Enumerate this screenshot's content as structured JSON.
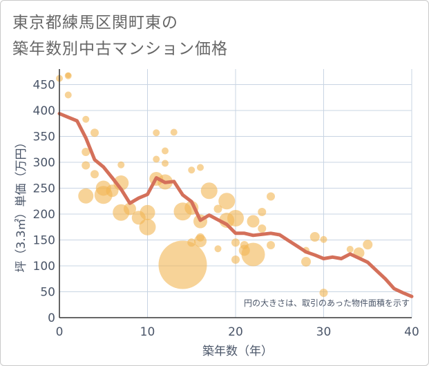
{
  "title_line1": "東京都練馬区関町東の",
  "title_line2": "築年数別中古マンション価格",
  "note": "円の大きさは、取引のあった物件面積を示す",
  "colors": {
    "line": "#d4705a",
    "bubble": "#f2b554",
    "grid": "#c8d4e3",
    "text": "#4a5568"
  },
  "chart_data": {
    "type": "scatter",
    "xlabel": "築年数（年）",
    "ylabel": "坪（3.3㎡）単価（万円）",
    "xlim": [
      0,
      40
    ],
    "ylim": [
      0,
      480
    ],
    "xticks": [
      0,
      10,
      20,
      30,
      40
    ],
    "yticks": [
      0,
      50,
      100,
      150,
      200,
      250,
      300,
      350,
      400,
      450
    ],
    "grid": true,
    "line_series": {
      "x": [
        0,
        1,
        2,
        3,
        4,
        5,
        6,
        7,
        8,
        9,
        10,
        11,
        12,
        13,
        14,
        15,
        16,
        17,
        18,
        19,
        20,
        21,
        22,
        23,
        24,
        25,
        26,
        27,
        28,
        29,
        30,
        31,
        32,
        33,
        34,
        35,
        36,
        37,
        38,
        39,
        40
      ],
      "y": [
        394,
        387,
        380,
        347,
        305,
        291,
        270,
        248,
        221,
        231,
        238,
        270,
        261,
        263,
        237,
        224,
        188,
        198,
        189,
        180,
        163,
        163,
        159,
        161,
        163,
        160,
        149,
        138,
        127,
        121,
        114,
        117,
        114,
        123,
        115,
        107,
        91,
        75,
        56,
        48,
        41
      ]
    },
    "bubbles": [
      {
        "x": 0,
        "y": 462,
        "s": 5
      },
      {
        "x": 1,
        "y": 467,
        "s": 5
      },
      {
        "x": 1,
        "y": 468,
        "s": 4
      },
      {
        "x": 1,
        "y": 430,
        "s": 5
      },
      {
        "x": 3,
        "y": 383,
        "s": 5
      },
      {
        "x": 4,
        "y": 357,
        "s": 6
      },
      {
        "x": 3,
        "y": 320,
        "s": 6
      },
      {
        "x": 3,
        "y": 294,
        "s": 6
      },
      {
        "x": 4,
        "y": 277,
        "s": 6
      },
      {
        "x": 3,
        "y": 235,
        "s": 11
      },
      {
        "x": 5,
        "y": 250,
        "s": 11
      },
      {
        "x": 5,
        "y": 237,
        "s": 13
      },
      {
        "x": 6,
        "y": 245,
        "s": 9
      },
      {
        "x": 7,
        "y": 260,
        "s": 11
      },
      {
        "x": 7,
        "y": 295,
        "s": 5
      },
      {
        "x": 7,
        "y": 203,
        "s": 12
      },
      {
        "x": 8,
        "y": 210,
        "s": 9
      },
      {
        "x": 9,
        "y": 193,
        "s": 10
      },
      {
        "x": 10,
        "y": 203,
        "s": 11
      },
      {
        "x": 10,
        "y": 175,
        "s": 12
      },
      {
        "x": 11,
        "y": 357,
        "s": 5
      },
      {
        "x": 11,
        "y": 306,
        "s": 5
      },
      {
        "x": 12,
        "y": 322,
        "s": 5
      },
      {
        "x": 12,
        "y": 298,
        "s": 5
      },
      {
        "x": 13,
        "y": 358,
        "s": 5
      },
      {
        "x": 11,
        "y": 268,
        "s": 10
      },
      {
        "x": 12,
        "y": 262,
        "s": 11
      },
      {
        "x": 14,
        "y": 102,
        "s": 35
      },
      {
        "x": 14,
        "y": 205,
        "s": 13
      },
      {
        "x": 15,
        "y": 212,
        "s": 10
      },
      {
        "x": 15,
        "y": 145,
        "s": 6
      },
      {
        "x": 15,
        "y": 285,
        "s": 5
      },
      {
        "x": 16,
        "y": 290,
        "s": 5
      },
      {
        "x": 16,
        "y": 186,
        "s": 10
      },
      {
        "x": 16,
        "y": 148,
        "s": 9
      },
      {
        "x": 16,
        "y": 155,
        "s": 6
      },
      {
        "x": 17,
        "y": 245,
        "s": 12
      },
      {
        "x": 18,
        "y": 133,
        "s": 5
      },
      {
        "x": 18,
        "y": 210,
        "s": 6
      },
      {
        "x": 19,
        "y": 225,
        "s": 12
      },
      {
        "x": 19,
        "y": 188,
        "s": 11
      },
      {
        "x": 20,
        "y": 192,
        "s": 12
      },
      {
        "x": 20,
        "y": 145,
        "s": 6
      },
      {
        "x": 20,
        "y": 112,
        "s": 6
      },
      {
        "x": 21,
        "y": 130,
        "s": 8
      },
      {
        "x": 21,
        "y": 140,
        "s": 6
      },
      {
        "x": 22,
        "y": 186,
        "s": 9
      },
      {
        "x": 22,
        "y": 122,
        "s": 17
      },
      {
        "x": 23,
        "y": 204,
        "s": 6
      },
      {
        "x": 23,
        "y": 172,
        "s": 6
      },
      {
        "x": 24,
        "y": 234,
        "s": 6
      },
      {
        "x": 24,
        "y": 140,
        "s": 6
      },
      {
        "x": 28,
        "y": 108,
        "s": 7
      },
      {
        "x": 28,
        "y": 130,
        "s": 5
      },
      {
        "x": 29,
        "y": 156,
        "s": 7
      },
      {
        "x": 30,
        "y": 151,
        "s": 5
      },
      {
        "x": 30,
        "y": 48,
        "s": 6
      },
      {
        "x": 33,
        "y": 132,
        "s": 5
      },
      {
        "x": 34,
        "y": 125,
        "s": 8
      },
      {
        "x": 35,
        "y": 141,
        "s": 7
      }
    ]
  }
}
